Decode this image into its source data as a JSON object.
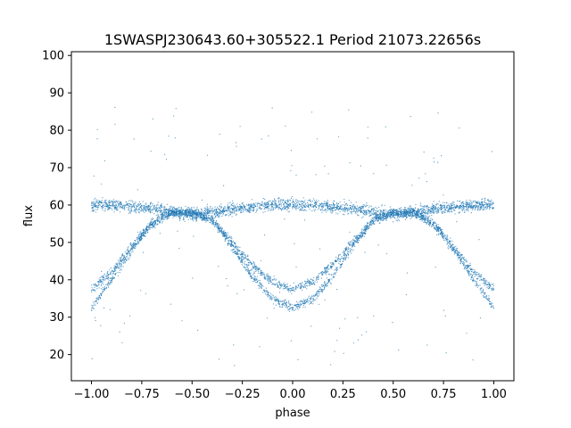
{
  "chart_data": {
    "type": "scatter",
    "title": "1SWASPJ230643.60+305522.1 Period 21073.22656s",
    "xlabel": "phase",
    "ylabel": "flux",
    "xlim": [
      -1.1,
      1.1
    ],
    "ylim": [
      13,
      101
    ],
    "x_ticks": [
      -1.0,
      -0.75,
      -0.5,
      -0.25,
      0.0,
      0.25,
      0.5,
      0.75,
      1.0
    ],
    "x_tick_labels": [
      "−1.00",
      "−0.75",
      "−0.50",
      "−0.25",
      "0.00",
      "0.25",
      "0.50",
      "0.75",
      "1.00"
    ],
    "y_ticks": [
      20,
      30,
      40,
      50,
      60,
      70,
      80,
      90,
      100
    ],
    "y_tick_labels": [
      "20",
      "30",
      "40",
      "50",
      "60",
      "70",
      "80",
      "90",
      "100"
    ],
    "grid": false,
    "marker_color": "#1f77b4",
    "series": [
      {
        "description_points": "phase-folded light curve, three overlapping branches",
        "x": [
          -1.0,
          -0.9,
          -0.8,
          -0.7,
          -0.6,
          -0.5,
          -0.4,
          -0.3,
          -0.2,
          -0.1,
          0.0,
          0.1,
          0.2,
          0.3,
          0.4,
          0.5,
          0.6,
          0.7,
          0.8,
          0.9,
          1.0
        ],
        "y_constant_branch": [
          60,
          60,
          59.5,
          59,
          58,
          57.5,
          58,
          59,
          59.5,
          60,
          60,
          60,
          59.5,
          59,
          58,
          57.5,
          58,
          59,
          59.5,
          60,
          60
        ],
        "y_deep_branch": [
          32.5,
          40,
          48,
          55,
          58,
          58,
          56,
          49,
          41,
          35,
          32.5,
          35,
          41,
          49,
          56,
          58,
          58,
          55,
          48,
          40,
          32.5
        ],
        "y_shallow_branch": [
          37.5,
          42,
          49,
          55,
          58,
          58,
          56,
          50,
          44,
          39.5,
          37.5,
          39.5,
          44,
          50,
          56,
          58,
          58,
          55,
          49,
          42,
          37.5
        ]
      }
    ]
  }
}
